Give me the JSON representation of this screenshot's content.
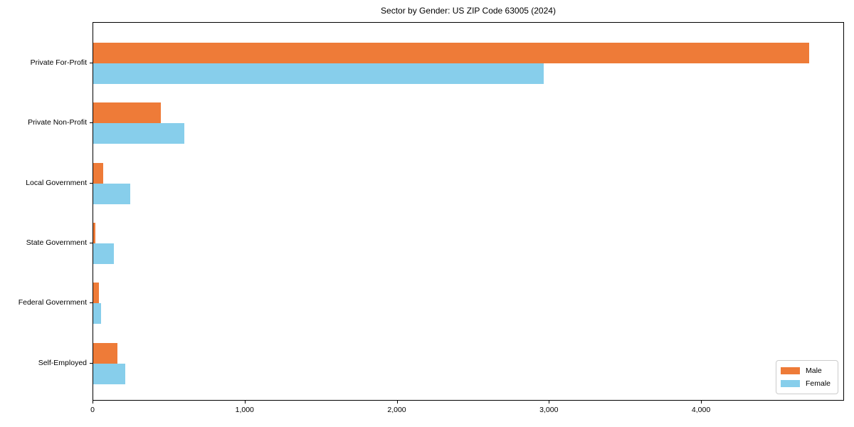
{
  "chart_data": {
    "type": "bar",
    "orientation": "horizontal",
    "title": "Sector by Gender: US ZIP Code 63005 (2024)",
    "categories": [
      "Private For-Profit",
      "Private Non-Profit",
      "Local Government",
      "State Government",
      "Federal Government",
      "Self-Employed"
    ],
    "series": [
      {
        "name": "Male",
        "color": "#EE7B38",
        "values": [
          4705,
          445,
          65,
          15,
          35,
          160
        ]
      },
      {
        "name": "Female",
        "color": "#87CEEB",
        "values": [
          2960,
          600,
          245,
          135,
          50,
          210
        ]
      }
    ],
    "xlabel": "",
    "ylabel": "",
    "xlim": [
      0,
      4940
    ],
    "xticks": [
      0,
      1000,
      2000,
      3000,
      4000
    ],
    "xtick_labels": [
      "0",
      "1,000",
      "2,000",
      "3,000",
      "4,000"
    ],
    "grid": false,
    "legend_position": "lower right",
    "axis_color": "#000000"
  }
}
